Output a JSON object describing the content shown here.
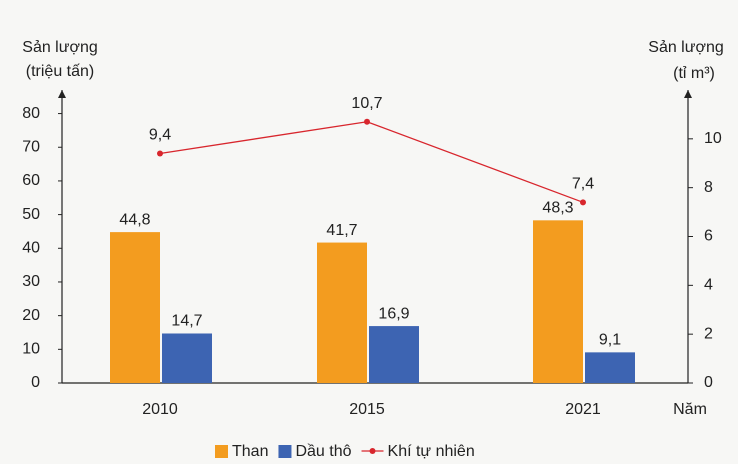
{
  "chart_data": {
    "type": "bar",
    "ylabel": [
      "Sản lượng",
      "(triệu tấn)"
    ],
    "y2label": [
      "Sản lượng",
      "(tỉ m³)"
    ],
    "xlabel": "Năm",
    "categories": [
      "2010",
      "2015",
      "2021"
    ],
    "series": [
      {
        "name": "Than",
        "color": "#f39c1f",
        "values": [
          44.8,
          41.7,
          48.3
        ],
        "value_labels": [
          "44,8",
          "41,7",
          "48,3"
        ]
      },
      {
        "name": "Dầu thô",
        "color": "#3d64b2",
        "values": [
          14.7,
          16.9,
          9.1
        ],
        "value_labels": [
          "14,7",
          "16,9",
          "9,1"
        ]
      },
      {
        "name": "Khí tự nhiên",
        "color": "#d8262d",
        "type": "line",
        "axis": "y2",
        "values": [
          9.4,
          10.7,
          7.4
        ],
        "value_labels": [
          "9,4",
          "10,7",
          "7,4"
        ]
      }
    ],
    "ylim": [
      0,
      87
    ],
    "yticks": [
      0,
      10,
      20,
      30,
      40,
      50,
      60,
      70,
      80
    ],
    "y2lim": [
      0,
      12
    ],
    "y2ticks": [
      0,
      2,
      4,
      6,
      8,
      10
    ]
  }
}
